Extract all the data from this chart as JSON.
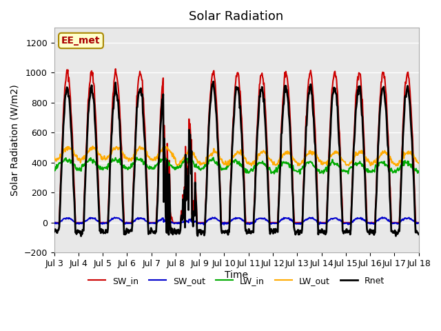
{
  "title": "Solar Radiation",
  "ylabel": "Solar Radiation (W/m2)",
  "xlabel": "Time",
  "annotation": "EE_met",
  "ylim": [
    -200,
    1300
  ],
  "yticks": [
    -200,
    0,
    200,
    400,
    600,
    800,
    1000,
    1200
  ],
  "x_tick_labels": [
    "Jul 3",
    "Jul 4",
    "Jul 5",
    "Jul 6",
    "Jul 7",
    "Jul 8",
    "Jul 9",
    "Jul 10",
    "Jul 11",
    "Jul 12",
    "Jul 13",
    "Jul 14",
    "Jul 15",
    "Jul 16",
    "Jul 17",
    "Jul 18"
  ],
  "background_color": "#ffffff",
  "plot_bg_color": "#e8e8e8",
  "grid_color": "#ffffff",
  "colors": {
    "SW_in": "#cc0000",
    "SW_out": "#0000cc",
    "LW_in": "#00aa00",
    "LW_out": "#ffaa00",
    "Rnet": "#000000"
  },
  "linewidths": {
    "SW_in": 1.5,
    "SW_out": 1.5,
    "LW_in": 1.5,
    "LW_out": 1.5,
    "Rnet": 2.0
  },
  "n_days": 15,
  "points_per_day": 48,
  "start_day": 3
}
